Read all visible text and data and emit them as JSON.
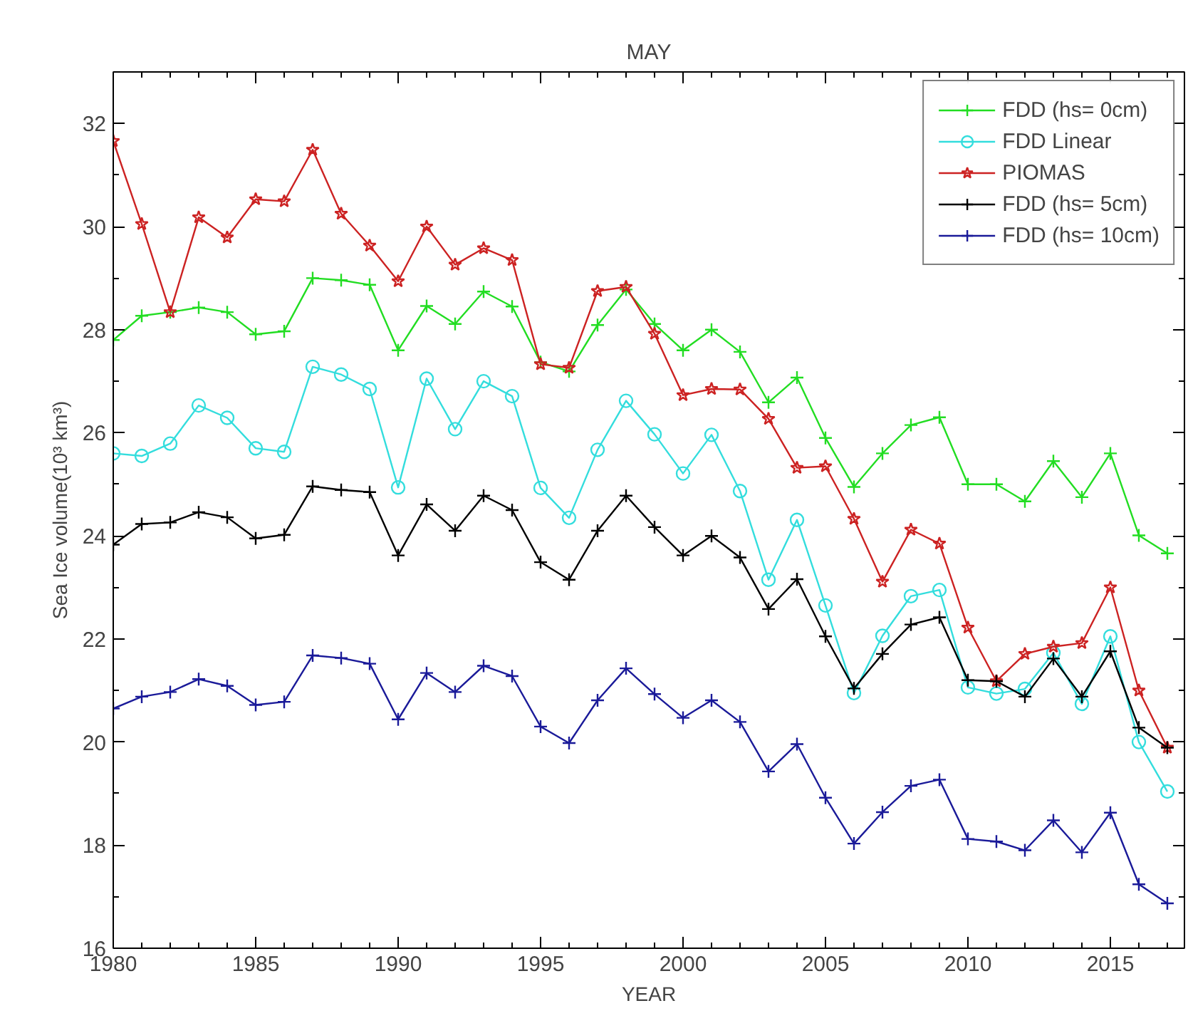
{
  "chart_data": {
    "type": "line",
    "title": "MAY",
    "xlabel": "YEAR",
    "ylabel": "Sea Ice volume(10³ km³)",
    "x": [
      1980,
      1981,
      1982,
      1983,
      1984,
      1985,
      1986,
      1987,
      1988,
      1989,
      1990,
      1991,
      1992,
      1993,
      1994,
      1995,
      1996,
      1997,
      1998,
      1999,
      2000,
      2001,
      2002,
      2003,
      2004,
      2005,
      2006,
      2007,
      2008,
      2009,
      2010,
      2011,
      2012,
      2013,
      2014,
      2015,
      2016,
      2017
    ],
    "series": [
      {
        "name": "FDD (hs= 0cm)",
        "color": "#22dd22",
        "marker": "cross",
        "values": [
          27.8,
          28.27,
          28.34,
          28.43,
          28.34,
          27.91,
          27.97,
          29.0,
          28.96,
          28.87,
          27.6,
          28.46,
          28.11,
          28.74,
          28.45,
          27.37,
          27.19,
          28.09,
          28.78,
          28.11,
          27.6,
          28.0,
          27.57,
          26.59,
          27.07,
          25.9,
          24.95,
          25.6,
          26.15,
          26.3,
          25.0,
          25.0,
          24.67,
          25.45,
          24.75,
          25.6,
          24.01,
          23.66
        ]
      },
      {
        "name": "FDD Linear",
        "color": "#33dddd",
        "marker": "circle",
        "values": [
          25.6,
          25.55,
          25.79,
          26.53,
          26.29,
          25.7,
          25.63,
          27.28,
          27.13,
          26.85,
          24.94,
          27.05,
          26.07,
          27.0,
          26.71,
          24.93,
          24.35,
          25.67,
          26.62,
          25.97,
          25.21,
          25.96,
          24.87,
          23.15,
          24.31,
          22.65,
          20.95,
          22.06,
          22.83,
          22.95,
          21.06,
          20.94,
          21.03,
          21.73,
          20.74,
          22.05,
          20.0,
          19.04
        ]
      },
      {
        "name": "PIOMAS",
        "color": "#cc2222",
        "marker": "star",
        "values": [
          31.66,
          30.05,
          28.34,
          30.18,
          29.79,
          30.53,
          30.49,
          31.49,
          30.25,
          29.63,
          28.94,
          30.0,
          29.26,
          29.58,
          29.35,
          27.33,
          27.26,
          28.75,
          28.83,
          27.92,
          26.73,
          26.85,
          26.84,
          26.27,
          25.32,
          25.35,
          24.33,
          23.11,
          24.12,
          23.85,
          22.22,
          21.18,
          21.71,
          21.85,
          21.92,
          23.0,
          21.0,
          19.89
        ]
      },
      {
        "name": "FDD (hs= 5cm)",
        "color": "#000000",
        "marker": "cross",
        "values": [
          23.83,
          24.23,
          24.26,
          24.46,
          24.36,
          23.95,
          24.02,
          24.96,
          24.89,
          24.85,
          23.62,
          24.61,
          24.1,
          24.78,
          24.5,
          23.49,
          23.15,
          24.1,
          24.78,
          24.17,
          23.62,
          24.0,
          23.58,
          22.58,
          23.16,
          22.05,
          21.04,
          21.71,
          22.28,
          22.42,
          21.2,
          21.18,
          20.88,
          21.62,
          20.88,
          21.76,
          20.28,
          19.89
        ]
      },
      {
        "name": "FDD (hs= 10cm)",
        "color": "#1a1a99",
        "marker": "cross",
        "values": [
          20.65,
          20.88,
          20.97,
          21.22,
          21.09,
          20.72,
          20.78,
          21.68,
          21.63,
          21.52,
          20.44,
          21.34,
          20.97,
          21.48,
          21.28,
          20.3,
          19.98,
          20.81,
          21.43,
          20.93,
          20.47,
          20.81,
          20.39,
          19.43,
          19.96,
          18.92,
          18.03,
          18.64,
          19.15,
          19.27,
          18.12,
          18.07,
          17.9,
          18.48,
          17.86,
          18.63,
          17.24,
          16.87
        ]
      }
    ],
    "xlim": [
      1980,
      2017.6
    ],
    "ylim": [
      16,
      33
    ],
    "xticks": [
      1980,
      1985,
      1990,
      1995,
      2000,
      2005,
      2010,
      2015
    ],
    "yticks": [
      16,
      18,
      20,
      22,
      24,
      26,
      28,
      30,
      32
    ],
    "grid": false,
    "legend": "top right",
    "line_style": "solid"
  }
}
